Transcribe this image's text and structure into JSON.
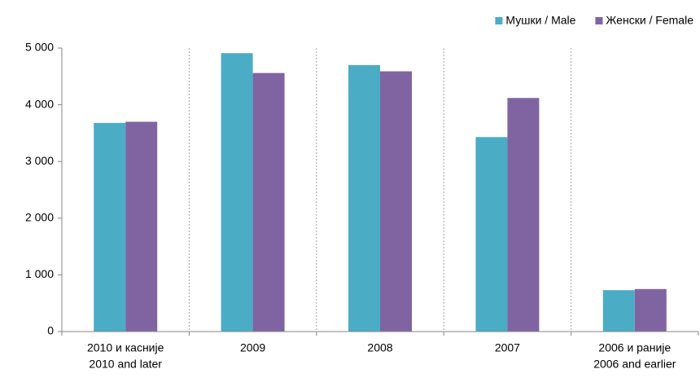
{
  "chart_data": {
    "type": "bar",
    "categories": [
      [
        "2010 и касније",
        "2010 and later"
      ],
      [
        "2009"
      ],
      [
        "2008"
      ],
      [
        "2007"
      ],
      [
        "2006 и раније",
        "2006 and earlier"
      ]
    ],
    "series": [
      {
        "name": "Мушки / Male",
        "color": "#4bacc6",
        "values": [
          3680,
          4910,
          4700,
          3430,
          730
        ]
      },
      {
        "name": "Женски / Female",
        "color": "#8064a2",
        "values": [
          3700,
          4560,
          4590,
          4120,
          750
        ]
      }
    ],
    "ylim": [
      0,
      5000
    ],
    "yticks": [
      0,
      {
        "value": 1000,
        "label": "1 000"
      },
      {
        "value": 2000,
        "label": "2 000"
      },
      {
        "value": 3000,
        "label": "3 000"
      },
      {
        "value": 4000,
        "label": "4 000"
      },
      {
        "value": 5000,
        "label": "5 000"
      }
    ],
    "legend": "top-right",
    "grid": "vertical"
  }
}
